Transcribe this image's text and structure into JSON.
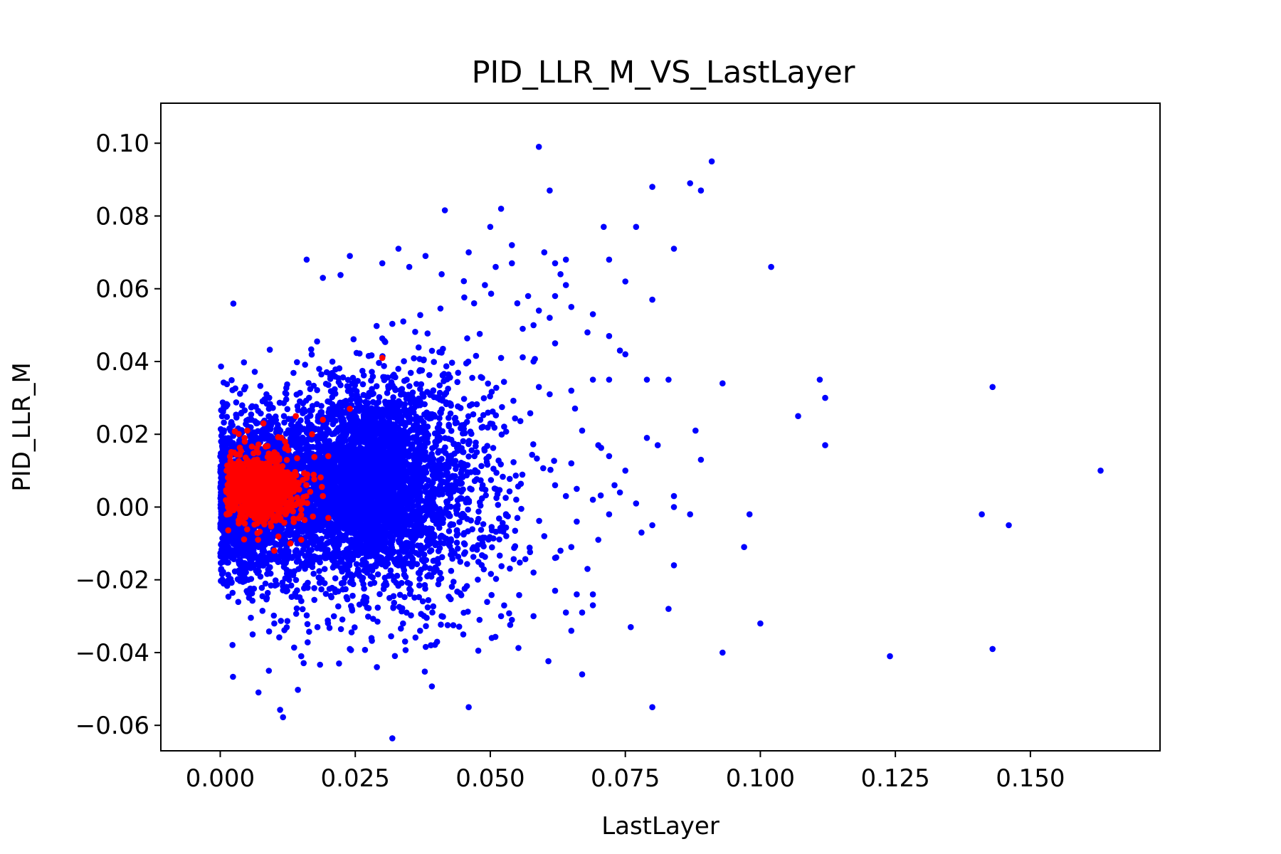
{
  "chart_data": {
    "type": "scatter",
    "title": "PID_LLR_M_VS_LastLayer",
    "xlabel": "LastLayer",
    "ylabel": "PID_LLR_M",
    "xlim": [
      -0.011,
      0.174
    ],
    "ylim": [
      -0.067,
      0.111
    ],
    "xticks": [
      0.0,
      0.025,
      0.05,
      0.075,
      0.1,
      0.125,
      0.15
    ],
    "xtick_labels": [
      "0.000",
      "0.025",
      "0.050",
      "0.075",
      "0.100",
      "0.125",
      "0.150"
    ],
    "yticks": [
      -0.06,
      -0.04,
      -0.02,
      0.0,
      0.02,
      0.04,
      0.06,
      0.08,
      0.1
    ],
    "ytick_labels": [
      "−0.06",
      "−0.04",
      "−0.02",
      "0.00",
      "0.02",
      "0.04",
      "0.06",
      "0.08",
      "0.10"
    ],
    "grid": false,
    "legend": "none",
    "series": [
      {
        "color": "#0000ff",
        "points": [
          [
            0.059,
            0.099
          ],
          [
            0.091,
            0.095
          ],
          [
            0.087,
            0.089
          ],
          [
            0.08,
            0.088
          ],
          [
            0.089,
            0.087
          ],
          [
            0.061,
            0.087
          ],
          [
            0.052,
            0.082
          ],
          [
            0.071,
            0.077
          ],
          [
            0.05,
            0.077
          ],
          [
            0.077,
            0.077
          ],
          [
            0.054,
            0.072
          ],
          [
            0.084,
            0.071
          ],
          [
            0.033,
            0.071
          ],
          [
            0.06,
            0.07
          ],
          [
            0.046,
            0.07
          ],
          [
            0.024,
            0.069
          ],
          [
            0.038,
            0.069
          ],
          [
            0.016,
            0.068
          ],
          [
            0.072,
            0.068
          ],
          [
            0.062,
            0.067
          ],
          [
            0.03,
            0.067
          ],
          [
            0.102,
            0.066
          ],
          [
            0.054,
            0.067
          ],
          [
            0.064,
            0.068
          ],
          [
            0.051,
            0.066
          ],
          [
            0.035,
            0.066
          ],
          [
            0.063,
            0.064
          ],
          [
            0.041,
            0.064
          ],
          [
            0.019,
            0.063
          ],
          [
            0.075,
            0.062
          ],
          [
            0.049,
            0.061
          ],
          [
            0.064,
            0.061
          ],
          [
            0.062,
            0.058
          ],
          [
            0.08,
            0.057
          ],
          [
            0.057,
            0.058
          ],
          [
            0.055,
            0.056
          ],
          [
            0.047,
            0.056
          ],
          [
            0.065,
            0.055
          ],
          [
            0.069,
            0.053
          ],
          [
            0.059,
            0.054
          ],
          [
            0.061,
            0.052
          ],
          [
            0.058,
            0.05
          ],
          [
            0.056,
            0.049
          ],
          [
            0.068,
            0.048
          ],
          [
            0.072,
            0.047
          ],
          [
            0.062,
            0.045
          ],
          [
            0.074,
            0.043
          ],
          [
            0.075,
            0.042
          ],
          [
            0.052,
            0.041
          ],
          [
            0.058,
            0.04
          ],
          [
            0.093,
            0.034
          ],
          [
            0.111,
            0.035
          ],
          [
            0.083,
            0.035
          ],
          [
            0.079,
            0.035
          ],
          [
            0.072,
            0.035
          ],
          [
            0.069,
            0.035
          ],
          [
            0.143,
            0.033
          ],
          [
            0.112,
            0.03
          ],
          [
            0.059,
            0.033
          ],
          [
            0.065,
            0.032
          ],
          [
            0.061,
            0.031
          ],
          [
            0.107,
            0.025
          ],
          [
            0.088,
            0.021
          ],
          [
            0.067,
            0.021
          ],
          [
            0.112,
            0.017
          ],
          [
            0.081,
            0.017
          ],
          [
            0.079,
            0.019
          ],
          [
            0.07,
            0.017
          ],
          [
            0.089,
            0.013
          ],
          [
            0.072,
            0.014
          ],
          [
            0.065,
            0.012
          ],
          [
            0.075,
            0.01
          ],
          [
            0.163,
            0.01
          ],
          [
            0.073,
            0.006
          ],
          [
            0.062,
            0.006
          ],
          [
            0.064,
            0.003
          ],
          [
            0.066,
            0.005
          ],
          [
            0.077,
            0.001
          ],
          [
            0.084,
            0.003
          ],
          [
            0.069,
            0.002
          ],
          [
            0.074,
            0.004
          ],
          [
            0.084,
            0.0
          ],
          [
            0.087,
            -0.002
          ],
          [
            0.098,
            -0.002
          ],
          [
            0.08,
            -0.005
          ],
          [
            0.141,
            -0.002
          ],
          [
            0.146,
            -0.005
          ],
          [
            0.072,
            -0.002
          ],
          [
            0.066,
            -0.004
          ],
          [
            0.078,
            -0.007
          ],
          [
            0.07,
            -0.009
          ],
          [
            0.06,
            -0.008
          ],
          [
            0.065,
            -0.011
          ],
          [
            0.097,
            -0.011
          ],
          [
            0.063,
            -0.012
          ],
          [
            0.062,
            -0.014
          ],
          [
            0.084,
            -0.016
          ],
          [
            0.068,
            -0.017
          ],
          [
            0.058,
            -0.018
          ],
          [
            0.069,
            -0.024
          ],
          [
            0.062,
            -0.023
          ],
          [
            0.066,
            -0.024
          ],
          [
            0.083,
            -0.028
          ],
          [
            0.064,
            -0.029
          ],
          [
            0.069,
            -0.027
          ],
          [
            0.058,
            -0.03
          ],
          [
            0.054,
            -0.031
          ],
          [
            0.067,
            -0.029
          ],
          [
            0.1,
            -0.032
          ],
          [
            0.065,
            -0.034
          ],
          [
            0.076,
            -0.033
          ],
          [
            0.093,
            -0.04
          ],
          [
            0.124,
            -0.041
          ],
          [
            0.143,
            -0.039
          ],
          [
            0.067,
            -0.046
          ],
          [
            0.08,
            -0.055
          ],
          [
            0.046,
            -0.055
          ],
          [
            0.009,
            -0.045
          ],
          [
            0.022,
            -0.043
          ],
          [
            0.029,
            -0.044
          ],
          [
            0.015,
            -0.041
          ],
          [
            0.039,
            -0.038
          ],
          [
            0.024,
            -0.039
          ],
          [
            0.037,
            -0.034
          ],
          [
            0.045,
            -0.035
          ],
          [
            0.028,
            -0.036
          ],
          [
            0.006,
            -0.035
          ],
          [
            0.018,
            -0.033
          ],
          [
            0.01,
            -0.032
          ],
          [
            0.041,
            -0.03
          ],
          [
            0.048,
            -0.031
          ],
          [
            0.052,
            -0.03
          ]
        ]
      },
      {
        "color": "#ff0000",
        "points": [
          [
            0.03,
            0.041
          ],
          [
            0.024,
            0.027
          ],
          [
            0.019,
            0.024
          ],
          [
            0.014,
            0.025
          ],
          [
            0.008,
            0.023
          ],
          [
            0.005,
            0.021
          ],
          [
            0.02,
            0.014
          ],
          [
            0.017,
            0.02
          ],
          [
            0.012,
            0.018
          ],
          [
            0.016,
            0.008
          ],
          [
            0.019,
            0.003
          ],
          [
            0.02,
            -0.003
          ],
          [
            0.015,
            -0.009
          ],
          [
            0.013,
            -0.01
          ],
          [
            0.01,
            -0.012
          ],
          [
            0.007,
            -0.009
          ],
          [
            0.004,
            -0.004
          ]
        ]
      }
    ]
  },
  "style": {
    "blue": "#0000ff",
    "red": "#ff0000"
  }
}
